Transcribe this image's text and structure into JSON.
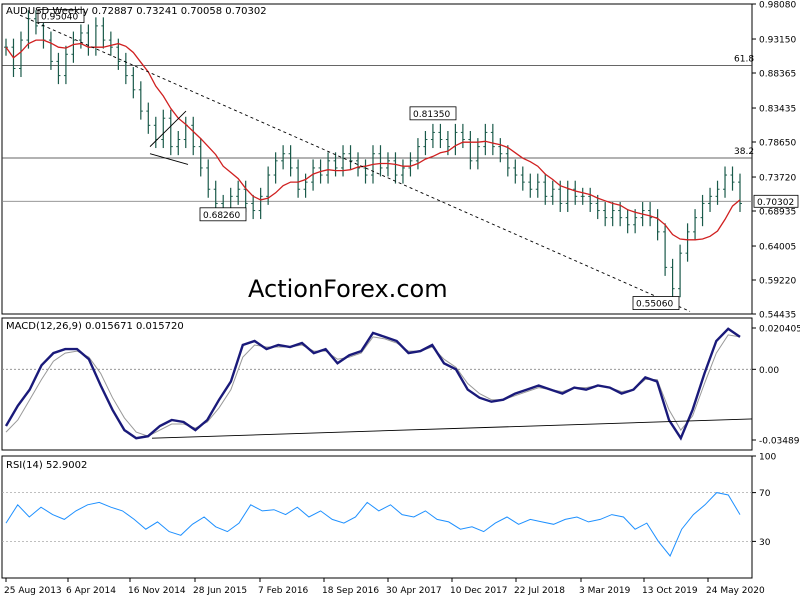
{
  "chart_data": [
    {
      "type": "ohlc",
      "symbol_header": "AUDUSD,Weekly",
      "ohlc_header": {
        "open": "0.72887",
        "high": "0.73241",
        "low": "0.70058",
        "close": "0.70302"
      },
      "y_tick_labels": [
        "0.98080",
        "0.93150",
        "0.88365",
        "0.83435",
        "0.78650",
        "0.73720",
        "0.68935",
        "0.64005",
        "0.59220",
        "0.54435"
      ],
      "y_range": [
        0.54435,
        0.9808
      ],
      "last_price_label": "0.70302",
      "last_price": 0.70302,
      "horizontal_levels": [
        {
          "label": "61.8",
          "value": 0.894
        },
        {
          "label": "38.2",
          "value": 0.764
        },
        {
          "label": "",
          "value": 0.70302
        }
      ],
      "price_annotations": [
        {
          "label": "0.95040",
          "value": 0.9504
        },
        {
          "label": "0.81350",
          "value": 0.8135
        },
        {
          "label": "0.68260",
          "value": 0.6826
        },
        {
          "label": "0.55060",
          "value": 0.5506
        }
      ],
      "watermark": "ActionForex.com",
      "close_series_weekly_approx": [
        0.92,
        0.89,
        0.93,
        0.96,
        0.95,
        0.93,
        0.9,
        0.88,
        0.91,
        0.93,
        0.94,
        0.92,
        0.95,
        0.93,
        0.92,
        0.9,
        0.88,
        0.86,
        0.83,
        0.81,
        0.79,
        0.82,
        0.78,
        0.79,
        0.81,
        0.78,
        0.75,
        0.72,
        0.7,
        0.69,
        0.71,
        0.72,
        0.7,
        0.69,
        0.71,
        0.74,
        0.76,
        0.77,
        0.75,
        0.72,
        0.73,
        0.75,
        0.74,
        0.76,
        0.75,
        0.77,
        0.76,
        0.75,
        0.74,
        0.77,
        0.75,
        0.76,
        0.74,
        0.75,
        0.76,
        0.78,
        0.79,
        0.8,
        0.79,
        0.78,
        0.8,
        0.79,
        0.76,
        0.78,
        0.8,
        0.78,
        0.77,
        0.75,
        0.74,
        0.73,
        0.72,
        0.73,
        0.71,
        0.72,
        0.7,
        0.72,
        0.71,
        0.71,
        0.7,
        0.69,
        0.68,
        0.69,
        0.68,
        0.67,
        0.68,
        0.69,
        0.68,
        0.66,
        0.61,
        0.58,
        0.63,
        0.66,
        0.68,
        0.7,
        0.71,
        0.72,
        0.74,
        0.73,
        0.7
      ]
    },
    {
      "type": "line",
      "label": "MACD(12,26,9) 0.015671 0.015720",
      "y_tick_labels": [
        "0.020405",
        "0.00",
        "-0.034892"
      ],
      "y_range": [
        -0.034892,
        0.020405
      ],
      "series": [
        {
          "color": "#1a1a7a",
          "values": [
            -0.028,
            -0.018,
            -0.01,
            0.002,
            0.008,
            0.01,
            0.01,
            0.005,
            -0.008,
            -0.02,
            -0.03,
            -0.034,
            -0.033,
            -0.028,
            -0.025,
            -0.026,
            -0.03,
            -0.025,
            -0.015,
            -0.006,
            0.012,
            0.014,
            0.01,
            0.012,
            0.011,
            0.013,
            0.008,
            0.01,
            0.003,
            0.007,
            0.009,
            0.018,
            0.016,
            0.014,
            0.008,
            0.009,
            0.012,
            0.003,
            0.0,
            -0.01,
            -0.014,
            -0.016,
            -0.015,
            -0.012,
            -0.01,
            -0.008,
            -0.01,
            -0.012,
            -0.009,
            -0.01,
            -0.008,
            -0.009,
            -0.012,
            -0.01,
            -0.004,
            -0.006,
            -0.025,
            -0.034,
            -0.02,
            -0.002,
            0.014,
            0.02,
            0.016
          ]
        },
        {
          "color": "#999999",
          "values": [
            -0.031,
            -0.025,
            -0.015,
            -0.005,
            0.004,
            0.008,
            0.009,
            0.006,
            -0.002,
            -0.014,
            -0.024,
            -0.031,
            -0.033,
            -0.03,
            -0.027,
            -0.027,
            -0.029,
            -0.026,
            -0.019,
            -0.01,
            0.006,
            0.012,
            0.011,
            0.011,
            0.011,
            0.012,
            0.009,
            0.009,
            0.005,
            0.006,
            0.008,
            0.016,
            0.015,
            0.013,
            0.009,
            0.009,
            0.011,
            0.005,
            0.001,
            -0.007,
            -0.012,
            -0.015,
            -0.015,
            -0.013,
            -0.011,
            -0.009,
            -0.01,
            -0.011,
            -0.009,
            -0.009,
            -0.008,
            -0.009,
            -0.011,
            -0.01,
            -0.005,
            -0.005,
            -0.02,
            -0.03,
            -0.023,
            -0.007,
            0.008,
            0.017,
            0.016
          ]
        }
      ]
    },
    {
      "type": "line",
      "label": "RSI(14) 52.9002",
      "y_tick_labels": [
        "100",
        "70",
        "30",
        "0"
      ],
      "y_range": [
        0,
        100
      ],
      "series": [
        {
          "color": "#1e90ff",
          "values": [
            45,
            60,
            50,
            58,
            52,
            48,
            55,
            60,
            62,
            58,
            55,
            48,
            40,
            46,
            38,
            35,
            44,
            50,
            42,
            38,
            45,
            60,
            55,
            56,
            52,
            58,
            50,
            55,
            48,
            45,
            50,
            62,
            55,
            60,
            52,
            50,
            55,
            48,
            46,
            40,
            42,
            38,
            45,
            50,
            44,
            48,
            46,
            44,
            48,
            50,
            46,
            48,
            52,
            50,
            40,
            45,
            30,
            18,
            40,
            52,
            60,
            70,
            68,
            52
          ]
        }
      ]
    }
  ],
  "x_tick_labels": [
    "25 Aug 2013",
    "6 Apr 2014",
    "16 Nov 2014",
    "28 Jun 2015",
    "7 Feb 2016",
    "18 Sep 2016",
    "30 Apr 2017",
    "10 Dec 2017",
    "22 Jul 2018",
    "3 Mar 2019",
    "13 Oct 2019",
    "24 May 2020"
  ]
}
